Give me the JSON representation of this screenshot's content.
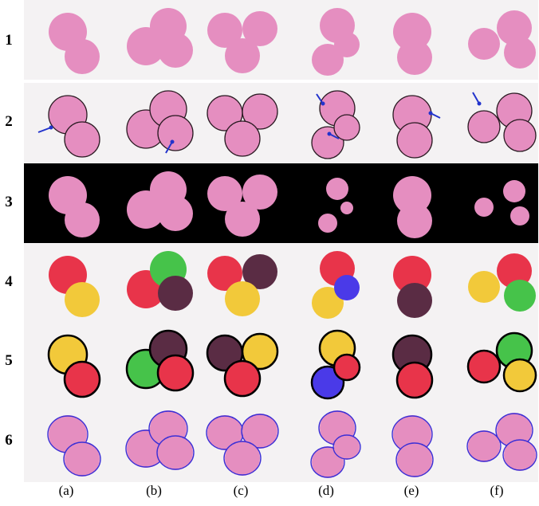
{
  "rows": [
    "1",
    "2",
    "3",
    "4",
    "5",
    "6"
  ],
  "columns": [
    "(a)",
    "(b)",
    "(c)",
    "(d)",
    "(e)",
    "(f)"
  ],
  "colors": {
    "cell": "#e58ec0",
    "cell_dark": "#d173aa",
    "outline": "#2a1a22",
    "mask_bg": "#000000",
    "red": "#e8344a",
    "green": "#46c34a",
    "yellow": "#f2c93a",
    "purple": "#5a2c44",
    "blue": "#4a3ae8",
    "arrow": "#2233cc",
    "ellipse": "#3b2fd6"
  }
}
